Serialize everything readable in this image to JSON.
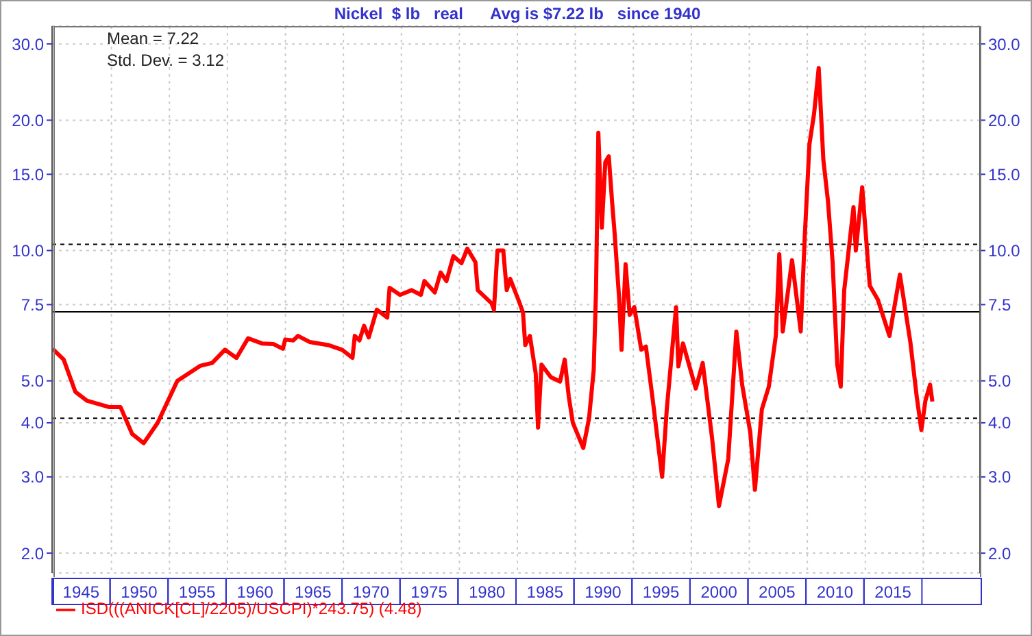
{
  "chart_data": {
    "type": "line",
    "title": "Nickel  $ lb   real      Avg is $7.22 lb   since 1940",
    "annotations": [
      "Mean = 7.22",
      "Std. Dev. = 3.12"
    ],
    "x": [
      1942.54,
      1943.5,
      1944.5,
      1945.5,
      1947.4,
      1948.4,
      1949.4,
      1950.4,
      1951.6,
      1953.3,
      1955.3,
      1956.3,
      1957.4,
      1958.4,
      1959.4,
      1960.6,
      1961.6,
      1962.4,
      1962.6,
      1963.3,
      1963.7,
      1964.7,
      1966.3,
      1967.5,
      1968.4,
      1968.6,
      1969,
      1969.4,
      1969.8,
      1970.5,
      1971.4,
      1971.6,
      1972.5,
      1973.5,
      1974.3,
      1974.6,
      1975.5,
      1976,
      1976.5,
      1977.1,
      1977.8,
      1978.3,
      1979,
      1979.2,
      1980.4,
      1980.6,
      1980.9,
      1981.4,
      1981.7,
      1982,
      1982.7,
      1983.1,
      1983.3,
      1983.7,
      1984.2,
      1984.4,
      1984.7,
      1985.5,
      1986.3,
      1986.7,
      1987.05,
      1987.4,
      1988.3,
      1988.8,
      1989.2,
      1989.4,
      1989.6,
      1989.9,
      1990.2,
      1990.5,
      1990.8,
      1991,
      1991.4,
      1991.6,
      1991.95,
      1992.3,
      1992.7,
      1993.3,
      1993.7,
      1994.3,
      1995.1,
      1995.5,
      1996.3,
      1996.5,
      1996.9,
      1998,
      1998.6,
      1999.4,
      2000,
      2000.8,
      2001.5,
      2002,
      2002.7,
      2003.1,
      2003.7,
      2004.3,
      2004.9,
      2005.2,
      2005.5,
      2006.3,
      2007.05,
      2007.4,
      2007.8,
      2008.2,
      2008.6,
      2009,
      2009.4,
      2009.8,
      2010.2,
      2010.5,
      2010.8,
      2011.6,
      2011.8,
      2012.35,
      2013,
      2013.7,
      2014.7,
      2015.6,
      2016.5,
      2017.05,
      2017.45,
      2017.8,
      2018.2,
      2018.4
    ],
    "series": [
      {
        "name": "ISD(((ANICK[CL]/2205)/USCPI)*243.75) (4.48)",
        "color": "#ff0000",
        "values": [
          5.93,
          5.6,
          4.72,
          4.5,
          4.35,
          4.35,
          3.77,
          3.59,
          4.0,
          5.0,
          5.42,
          5.5,
          5.9,
          5.65,
          6.27,
          6.1,
          6.08,
          5.93,
          6.23,
          6.2,
          6.35,
          6.15,
          6.05,
          5.9,
          5.65,
          6.35,
          6.2,
          6.7,
          6.3,
          7.3,
          7.0,
          8.2,
          7.9,
          8.1,
          7.9,
          8.5,
          8.0,
          8.9,
          8.5,
          9.7,
          9.35,
          10.1,
          9.4,
          8.1,
          7.55,
          7.3,
          10.0,
          10.0,
          8.1,
          8.6,
          7.7,
          7.2,
          6.05,
          6.35,
          5.2,
          3.9,
          5.45,
          5.1,
          4.98,
          5.6,
          4.6,
          4.0,
          3.5,
          4.1,
          5.3,
          8.1,
          18.7,
          11.3,
          16.0,
          16.5,
          12.8,
          11.0,
          7.7,
          5.9,
          9.3,
          7.1,
          7.4,
          5.9,
          6.0,
          4.5,
          3.0,
          4.3,
          7.4,
          5.4,
          6.1,
          4.8,
          5.5,
          3.7,
          2.57,
          3.3,
          6.5,
          4.9,
          3.8,
          2.8,
          4.3,
          4.85,
          6.35,
          9.8,
          6.5,
          9.5,
          6.5,
          10.8,
          17.6,
          20.7,
          26.4,
          16.2,
          13.0,
          9.4,
          5.45,
          4.85,
          8.1,
          12.6,
          10.0,
          14.0,
          8.3,
          7.7,
          6.35,
          8.8,
          6.15,
          4.6,
          3.85,
          4.5,
          4.9,
          4.48
        ]
      }
    ],
    "xlim": [
      1942.5,
      2022.5
    ],
    "xticks": [
      1945,
      1950,
      1955,
      1960,
      1965,
      1970,
      1975,
      1980,
      1985,
      1990,
      1995,
      2000,
      2005,
      2010,
      2015
    ],
    "ylim": [
      1.8,
      33
    ],
    "yticks": [
      {
        "value": 2,
        "label": "2.0"
      },
      {
        "value": 3,
        "label": "3.0"
      },
      {
        "value": 4,
        "label": "4.0"
      },
      {
        "value": 5,
        "label": "5.0"
      },
      {
        "value": 7.5,
        "label": "7.5"
      },
      {
        "value": 10,
        "label": "10.0"
      },
      {
        "value": 15,
        "label": "15.0"
      },
      {
        "value": 20,
        "label": "20.0"
      },
      {
        "value": 30,
        "label": "30.0"
      }
    ],
    "log": "y",
    "grid": true,
    "legend": "bottom",
    "marker": "none",
    "line_style": "solid",
    "ref_lines": [
      {
        "axis": "y",
        "value": 7.22,
        "color": "#000000",
        "line_style": "solid"
      },
      {
        "axis": "y",
        "value": 10.34,
        "color": "#000000",
        "line_style": "dashed"
      },
      {
        "axis": "y",
        "value": 4.1,
        "color": "#000000",
        "line_style": "dashed"
      }
    ]
  }
}
